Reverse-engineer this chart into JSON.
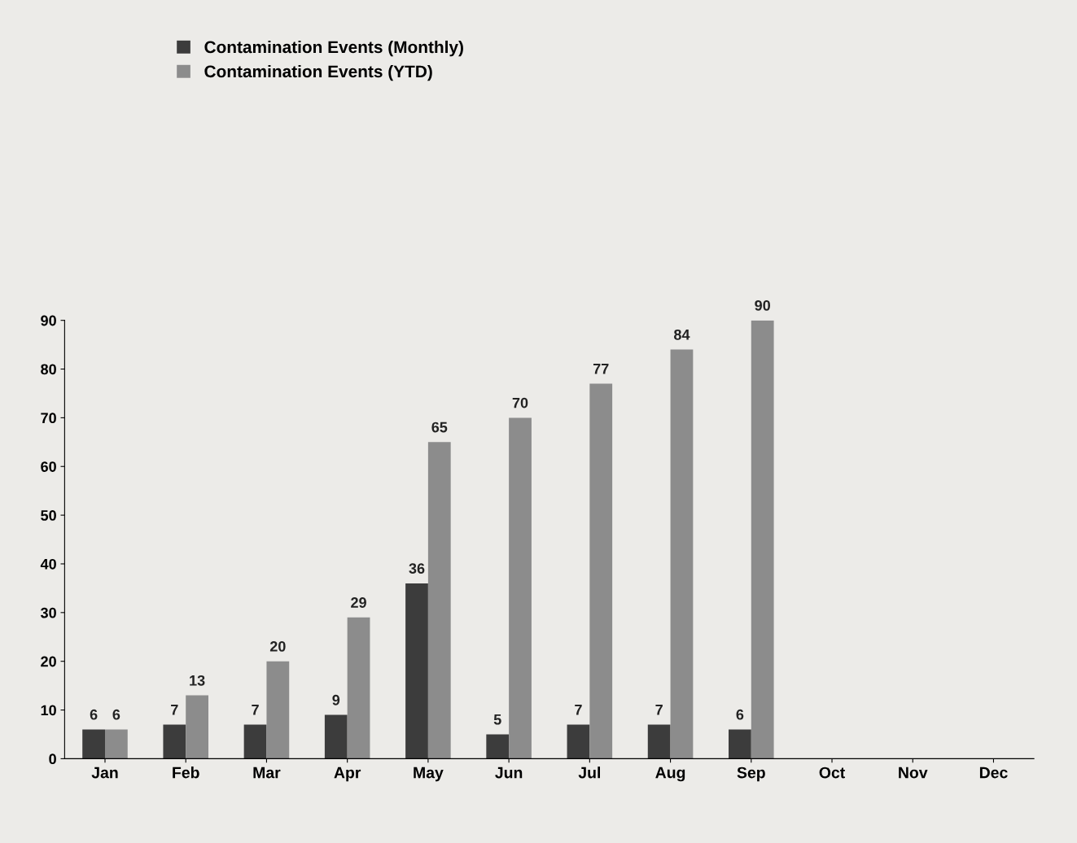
{
  "chart_data": {
    "type": "bar",
    "categories": [
      "Jan",
      "Feb",
      "Mar",
      "Apr",
      "May",
      "Jun",
      "Jul",
      "Aug",
      "Sep",
      "Oct",
      "Nov",
      "Dec"
    ],
    "series": [
      {
        "name": "Contamination Events (Monthly)",
        "color": "#3c3c3c",
        "values": [
          6,
          7,
          7,
          9,
          36,
          5,
          7,
          7,
          6,
          null,
          null,
          null
        ]
      },
      {
        "name": "Contamination Events (YTD)",
        "color": "#8c8c8c",
        "values": [
          6,
          13,
          20,
          29,
          65,
          70,
          77,
          84,
          90,
          null,
          null,
          null
        ]
      }
    ],
    "ylim": [
      0,
      90
    ],
    "yticks": [
      0,
      10,
      20,
      30,
      40,
      50,
      60,
      70,
      80,
      90
    ],
    "grid": false,
    "legend": "top left",
    "data_labels": true
  }
}
